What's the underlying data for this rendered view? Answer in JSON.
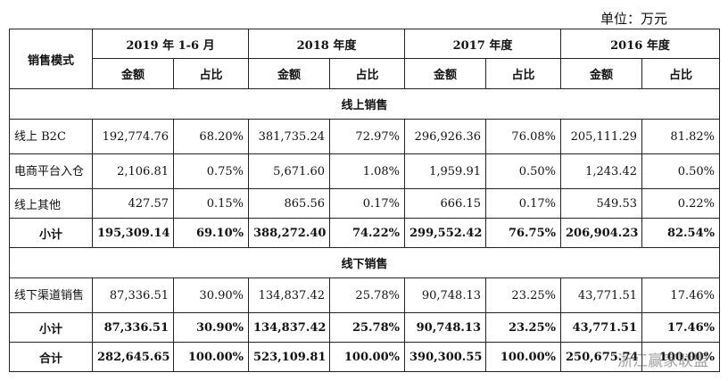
{
  "unit_label": "单位：万元",
  "header": {
    "mode_label": "销售模式",
    "periods": [
      "2019 年 1-6 月",
      "2018 年度",
      "2017 年度",
      "2016 年度"
    ],
    "amount_label": "金额",
    "ratio_label": "占比"
  },
  "sections": [
    {
      "title": "线上销售",
      "rows": [
        {
          "label": "线上 B2C",
          "values": [
            "192,774.76",
            "68.20%",
            "381,735.24",
            "72.97%",
            "296,926.36",
            "76.08%",
            "205,111.29",
            "81.82%"
          ]
        },
        {
          "label": "电商平台入仓",
          "values": [
            "2,106.81",
            "0.75%",
            "5,671.60",
            "1.08%",
            "1,959.91",
            "0.50%",
            "1,243.42",
            "0.50%"
          ]
        },
        {
          "label": "线上其他",
          "values": [
            "427.57",
            "0.15%",
            "865.56",
            "0.17%",
            "666.15",
            "0.17%",
            "549.53",
            "0.22%"
          ]
        }
      ],
      "subtotal": {
        "label": "小计",
        "values": [
          "195,309.14",
          "69.10%",
          "388,272.40",
          "74.22%",
          "299,552.42",
          "76.75%",
          "206,904.23",
          "82.54%"
        ]
      }
    },
    {
      "title": "线下销售",
      "rows": [
        {
          "label": "线下渠道销售",
          "values": [
            "87,336.51",
            "30.90%",
            "134,837.42",
            "25.78%",
            "90,748.13",
            "23.25%",
            "43,771.51",
            "17.46%"
          ]
        }
      ],
      "subtotal": {
        "label": "小计",
        "values": [
          "87,336.51",
          "30.90%",
          "134,837.42",
          "25.78%",
          "90,748.13",
          "23.25%",
          "43,771.51",
          "17.46%"
        ]
      }
    }
  ],
  "total": {
    "label": "合计",
    "values": [
      "282,645.65",
      "100.00%",
      "523,109.81",
      "100.00%",
      "390,300.55",
      "100.00%",
      "250,675.74",
      "100.00%"
    ]
  },
  "watermark": "浙江赢家联盟"
}
